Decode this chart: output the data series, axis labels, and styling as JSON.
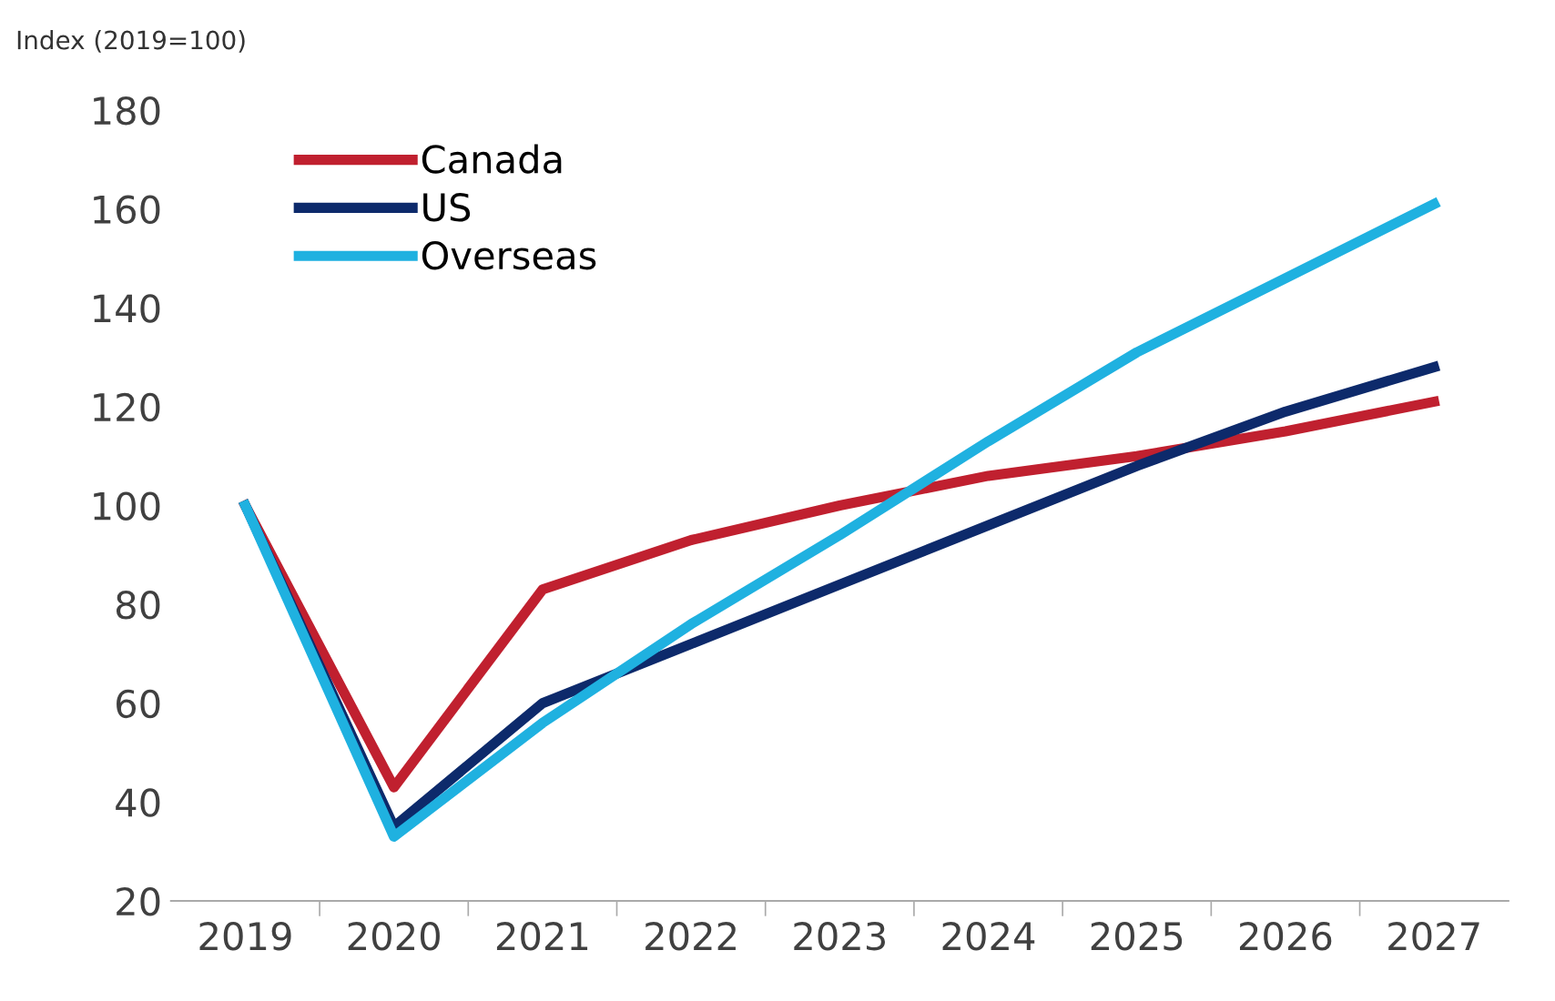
{
  "chart_data": {
    "type": "line",
    "title": "Index (2019=100)",
    "categories": [
      "2019",
      "2020",
      "2021",
      "2022",
      "2023",
      "2024",
      "2025",
      "2026",
      "2027"
    ],
    "series": [
      {
        "name": "Canada",
        "color": "#c0202f",
        "values": [
          100,
          43,
          83,
          93,
          100,
          106,
          110,
          115,
          121
        ]
      },
      {
        "name": "US",
        "color": "#0d2a6b",
        "values": [
          100,
          35,
          60,
          72,
          84,
          96,
          108,
          119,
          128
        ]
      },
      {
        "name": "Overseas",
        "color": "#1fb1e0",
        "values": [
          100,
          33,
          56,
          76,
          94,
          113,
          131,
          146,
          161
        ]
      }
    ],
    "ylim": [
      20,
      180
    ],
    "yticks": [
      20,
      40,
      60,
      80,
      100,
      120,
      140,
      160,
      180
    ],
    "grid": false,
    "legend": "top left",
    "marker": "none",
    "line_style": "solid"
  }
}
